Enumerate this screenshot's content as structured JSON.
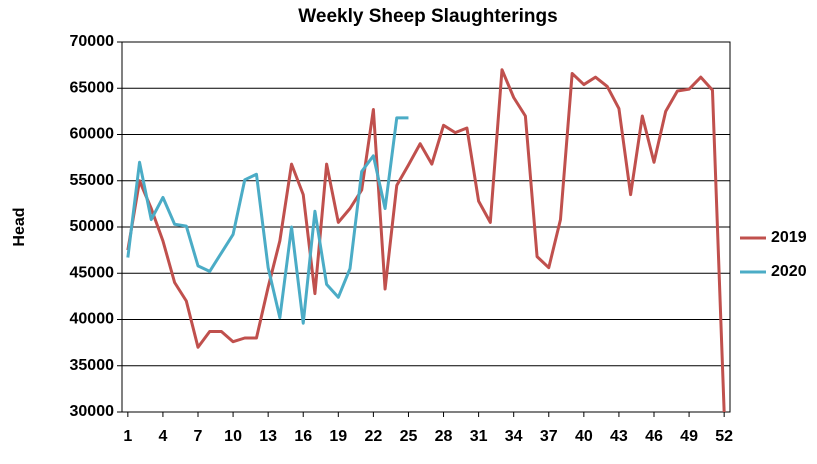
{
  "chart_data": {
    "type": "line",
    "title": "Weekly Sheep Slaughterings",
    "y_label": "Head",
    "x": [
      1,
      2,
      3,
      4,
      5,
      6,
      7,
      8,
      9,
      10,
      11,
      12,
      13,
      14,
      15,
      16,
      17,
      18,
      19,
      20,
      21,
      22,
      23,
      24,
      25,
      26,
      27,
      28,
      29,
      30,
      31,
      32,
      33,
      34,
      35,
      36,
      37,
      38,
      39,
      40,
      41,
      42,
      43,
      44,
      45,
      46,
      47,
      48,
      49,
      50,
      51,
      52
    ],
    "xlim": [
      0.5,
      52.5
    ],
    "xticks": [
      1,
      4,
      7,
      10,
      13,
      16,
      19,
      22,
      25,
      28,
      31,
      34,
      37,
      40,
      43,
      46,
      49,
      52
    ],
    "ylim": [
      30000,
      70000
    ],
    "yticks": [
      30000,
      35000,
      40000,
      45000,
      50000,
      55000,
      60000,
      65000,
      70000
    ],
    "grid": true,
    "legend": "right",
    "series": [
      {
        "name": "2019",
        "color": "#c0504d",
        "values": [
          47500,
          55000,
          52000,
          48500,
          44000,
          42000,
          37000,
          38700,
          38700,
          37600,
          38000,
          38000,
          43500,
          48500,
          56800,
          53500,
          42800,
          56800,
          50500,
          52000,
          54000,
          62700,
          43300,
          54500,
          56700,
          59000,
          56800,
          61000,
          60200,
          60700,
          52800,
          50500,
          67000,
          64000,
          62000,
          46800,
          45600,
          50800,
          66600,
          65400,
          66200,
          65200,
          62800,
          53500,
          62000,
          57000,
          62500,
          64700,
          64900,
          66200,
          64800,
          30000
        ]
      },
      {
        "name": "2020",
        "color": "#4bacc6",
        "values": [
          46700,
          57000,
          50800,
          53200,
          50300,
          50100,
          45800,
          45200,
          47200,
          49200,
          55100,
          55700,
          45600,
          40200,
          50000,
          39600,
          51700,
          43800,
          42400,
          45500,
          56000,
          57700,
          52000,
          61800,
          61800,
          null,
          null,
          null,
          null,
          null,
          null,
          null,
          null,
          null,
          null,
          null,
          null,
          null,
          null,
          null,
          null,
          null,
          null,
          null,
          null,
          null,
          null,
          null,
          null,
          null,
          null,
          null
        ]
      }
    ]
  }
}
